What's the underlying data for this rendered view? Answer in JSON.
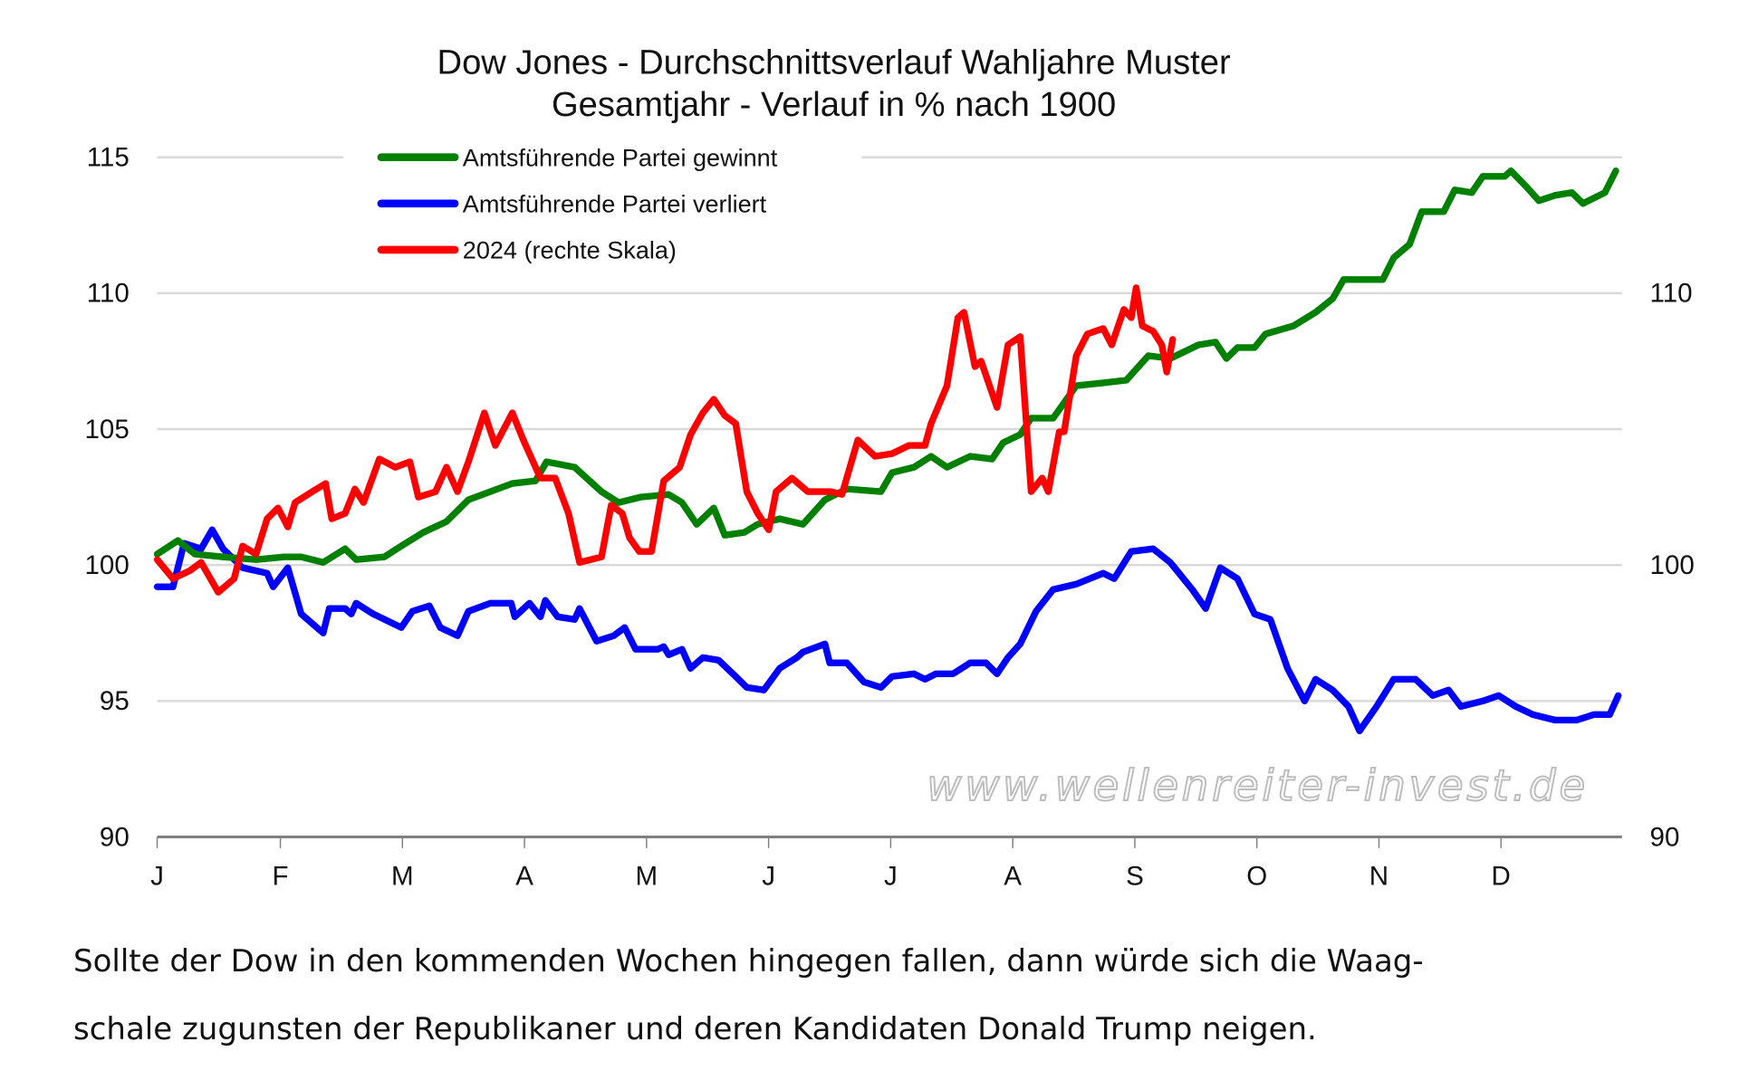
{
  "chart_data": {
    "type": "line",
    "title": "Dow Jones - Durchschnittsverlauf Wahljahre Muster",
    "subtitle": "Gesamtjahr - Verlauf in % nach 1900",
    "xlabel": "",
    "ylabel": "",
    "x_unit": "month position (0 = Jan start, 12 = year end)",
    "x_tick_labels": [
      "J",
      "F",
      "M",
      "A",
      "M",
      "J",
      "J",
      "A",
      "S",
      "O",
      "N",
      "D"
    ],
    "y_left_ticks": [
      90,
      95,
      100,
      105,
      110,
      115
    ],
    "y_right_ticks": [
      90,
      100,
      110
    ],
    "ylim": [
      90,
      115
    ],
    "grid": true,
    "legend_position": "top-left",
    "series": [
      {
        "name": "Amtsführende Partei gewinnt",
        "color": "#008000",
        "axis": "left",
        "points": [
          [
            0.0,
            100.4
          ],
          [
            0.17,
            100.9
          ],
          [
            0.31,
            100.4
          ],
          [
            0.54,
            100.3
          ],
          [
            0.81,
            100.2
          ],
          [
            1.04,
            100.3
          ],
          [
            1.18,
            100.3
          ],
          [
            1.36,
            100.1
          ],
          [
            1.54,
            100.6
          ],
          [
            1.63,
            100.2
          ],
          [
            1.86,
            100.3
          ],
          [
            2.0,
            100.7
          ],
          [
            2.18,
            101.2
          ],
          [
            2.37,
            101.6
          ],
          [
            2.55,
            102.4
          ],
          [
            2.73,
            102.7
          ],
          [
            2.91,
            103.0
          ],
          [
            3.1,
            103.1
          ],
          [
            3.19,
            103.8
          ],
          [
            3.42,
            103.6
          ],
          [
            3.64,
            102.7
          ],
          [
            3.78,
            102.3
          ],
          [
            3.96,
            102.5
          ],
          [
            4.19,
            102.6
          ],
          [
            4.3,
            102.3
          ],
          [
            4.42,
            101.5
          ],
          [
            4.56,
            102.1
          ],
          [
            4.65,
            101.1
          ],
          [
            4.81,
            101.2
          ],
          [
            4.92,
            101.5
          ],
          [
            5.1,
            101.7
          ],
          [
            5.29,
            101.5
          ],
          [
            5.47,
            102.4
          ],
          [
            5.65,
            102.8
          ],
          [
            5.93,
            102.7
          ],
          [
            6.02,
            103.4
          ],
          [
            6.2,
            103.6
          ],
          [
            6.34,
            104.0
          ],
          [
            6.47,
            103.6
          ],
          [
            6.66,
            104.0
          ],
          [
            6.84,
            103.9
          ],
          [
            6.93,
            104.5
          ],
          [
            7.07,
            104.8
          ],
          [
            7.16,
            105.4
          ],
          [
            7.34,
            105.4
          ],
          [
            7.53,
            106.6
          ],
          [
            7.75,
            106.7
          ],
          [
            7.94,
            106.8
          ],
          [
            8.12,
            107.7
          ],
          [
            8.3,
            107.6
          ],
          [
            8.53,
            108.1
          ],
          [
            8.67,
            108.2
          ],
          [
            8.76,
            107.6
          ],
          [
            8.85,
            108.0
          ],
          [
            8.99,
            108.0
          ],
          [
            9.08,
            108.5
          ],
          [
            9.31,
            108.8
          ],
          [
            9.49,
            109.3
          ],
          [
            9.63,
            109.8
          ],
          [
            9.72,
            110.5
          ],
          [
            9.85,
            110.5
          ],
          [
            10.04,
            110.5
          ],
          [
            10.13,
            111.3
          ],
          [
            10.26,
            111.8
          ],
          [
            10.36,
            113.0
          ],
          [
            10.54,
            113.0
          ],
          [
            10.63,
            113.8
          ],
          [
            10.77,
            113.7
          ],
          [
            10.86,
            114.3
          ],
          [
            11.04,
            114.3
          ],
          [
            11.09,
            114.5
          ],
          [
            11.22,
            113.9
          ],
          [
            11.32,
            113.4
          ],
          [
            11.45,
            113.6
          ],
          [
            11.59,
            113.7
          ],
          [
            11.68,
            113.3
          ],
          [
            11.86,
            113.7
          ],
          [
            11.95,
            114.5
          ]
        ]
      },
      {
        "name": "Amtsführende Partei verliert",
        "color": "#0000ff",
        "axis": "left",
        "points": [
          [
            0.0,
            99.2
          ],
          [
            0.13,
            99.2
          ],
          [
            0.22,
            100.8
          ],
          [
            0.36,
            100.6
          ],
          [
            0.45,
            101.3
          ],
          [
            0.54,
            100.6
          ],
          [
            0.7,
            99.9
          ],
          [
            0.9,
            99.7
          ],
          [
            0.95,
            99.2
          ],
          [
            1.07,
            99.9
          ],
          [
            1.18,
            98.2
          ],
          [
            1.36,
            97.5
          ],
          [
            1.41,
            98.4
          ],
          [
            1.54,
            98.4
          ],
          [
            1.59,
            98.2
          ],
          [
            1.63,
            98.6
          ],
          [
            1.77,
            98.2
          ],
          [
            2.0,
            97.7
          ],
          [
            2.09,
            98.3
          ],
          [
            2.23,
            98.5
          ],
          [
            2.32,
            97.7
          ],
          [
            2.46,
            97.4
          ],
          [
            2.55,
            98.3
          ],
          [
            2.73,
            98.6
          ],
          [
            2.9,
            98.6
          ],
          [
            2.93,
            98.1
          ],
          [
            3.05,
            98.6
          ],
          [
            3.14,
            98.1
          ],
          [
            3.18,
            98.7
          ],
          [
            3.28,
            98.1
          ],
          [
            3.42,
            98.0
          ],
          [
            3.46,
            98.4
          ],
          [
            3.6,
            97.2
          ],
          [
            3.74,
            97.4
          ],
          [
            3.83,
            97.7
          ],
          [
            3.92,
            96.9
          ],
          [
            4.1,
            96.9
          ],
          [
            4.15,
            97.0
          ],
          [
            4.19,
            96.7
          ],
          [
            4.3,
            96.9
          ],
          [
            4.37,
            96.2
          ],
          [
            4.47,
            96.6
          ],
          [
            4.6,
            96.5
          ],
          [
            4.74,
            95.9
          ],
          [
            4.83,
            95.5
          ],
          [
            4.97,
            95.4
          ],
          [
            5.1,
            96.2
          ],
          [
            5.24,
            96.6
          ],
          [
            5.29,
            96.8
          ],
          [
            5.47,
            97.1
          ],
          [
            5.51,
            96.4
          ],
          [
            5.65,
            96.4
          ],
          [
            5.79,
            95.7
          ],
          [
            5.93,
            95.5
          ],
          [
            6.02,
            95.9
          ],
          [
            6.2,
            96.0
          ],
          [
            6.29,
            95.8
          ],
          [
            6.38,
            96.0
          ],
          [
            6.52,
            96.0
          ],
          [
            6.66,
            96.4
          ],
          [
            6.79,
            96.4
          ],
          [
            6.88,
            96.0
          ],
          [
            6.97,
            96.6
          ],
          [
            7.07,
            97.1
          ],
          [
            7.2,
            98.3
          ],
          [
            7.34,
            99.1
          ],
          [
            7.53,
            99.3
          ],
          [
            7.75,
            99.7
          ],
          [
            7.84,
            99.5
          ],
          [
            7.98,
            100.5
          ],
          [
            8.16,
            100.6
          ],
          [
            8.3,
            100.1
          ],
          [
            8.48,
            99.1
          ],
          [
            8.59,
            98.4
          ],
          [
            8.71,
            99.9
          ],
          [
            8.85,
            99.5
          ],
          [
            8.99,
            98.2
          ],
          [
            9.12,
            98.0
          ],
          [
            9.26,
            96.2
          ],
          [
            9.4,
            95.0
          ],
          [
            9.49,
            95.8
          ],
          [
            9.63,
            95.4
          ],
          [
            9.76,
            94.8
          ],
          [
            9.85,
            93.9
          ],
          [
            9.99,
            94.8
          ],
          [
            10.13,
            95.8
          ],
          [
            10.31,
            95.8
          ],
          [
            10.45,
            95.2
          ],
          [
            10.58,
            95.4
          ],
          [
            10.68,
            94.8
          ],
          [
            10.86,
            95.0
          ],
          [
            10.99,
            95.2
          ],
          [
            11.13,
            94.8
          ],
          [
            11.27,
            94.5
          ],
          [
            11.45,
            94.3
          ],
          [
            11.63,
            94.3
          ],
          [
            11.77,
            94.5
          ],
          [
            11.9,
            94.5
          ],
          [
            11.97,
            95.2
          ]
        ]
      },
      {
        "name": "2024 (rechte Skala)",
        "color": "#ff0000",
        "axis": "right",
        "points": [
          [
            0.0,
            100.2
          ],
          [
            0.13,
            99.5
          ],
          [
            0.27,
            99.8
          ],
          [
            0.36,
            100.1
          ],
          [
            0.5,
            99.0
          ],
          [
            0.63,
            99.5
          ],
          [
            0.7,
            100.7
          ],
          [
            0.81,
            100.4
          ],
          [
            0.9,
            101.7
          ],
          [
            0.99,
            102.1
          ],
          [
            1.07,
            101.4
          ],
          [
            1.13,
            102.3
          ],
          [
            1.27,
            102.7
          ],
          [
            1.38,
            103.0
          ],
          [
            1.43,
            101.7
          ],
          [
            1.54,
            101.9
          ],
          [
            1.62,
            102.8
          ],
          [
            1.69,
            102.3
          ],
          [
            1.82,
            103.9
          ],
          [
            1.95,
            103.6
          ],
          [
            2.07,
            103.8
          ],
          [
            2.14,
            102.5
          ],
          [
            2.28,
            102.7
          ],
          [
            2.37,
            103.6
          ],
          [
            2.46,
            102.7
          ],
          [
            2.55,
            103.8
          ],
          [
            2.68,
            105.6
          ],
          [
            2.77,
            104.4
          ],
          [
            2.91,
            105.6
          ],
          [
            3.0,
            104.6
          ],
          [
            3.14,
            103.2
          ],
          [
            3.26,
            103.2
          ],
          [
            3.37,
            101.9
          ],
          [
            3.46,
            100.1
          ],
          [
            3.64,
            100.3
          ],
          [
            3.72,
            102.2
          ],
          [
            3.81,
            101.9
          ],
          [
            3.87,
            101.0
          ],
          [
            3.95,
            100.5
          ],
          [
            4.05,
            100.5
          ],
          [
            4.15,
            103.1
          ],
          [
            4.28,
            103.6
          ],
          [
            4.37,
            104.8
          ],
          [
            4.47,
            105.6
          ],
          [
            4.56,
            106.1
          ],
          [
            4.65,
            105.5
          ],
          [
            4.74,
            105.2
          ],
          [
            4.83,
            102.7
          ],
          [
            4.92,
            101.9
          ],
          [
            5.01,
            101.3
          ],
          [
            5.07,
            102.7
          ],
          [
            5.2,
            103.2
          ],
          [
            5.33,
            102.7
          ],
          [
            5.52,
            102.7
          ],
          [
            5.61,
            102.6
          ],
          [
            5.74,
            104.6
          ],
          [
            5.88,
            104.0
          ],
          [
            6.02,
            104.1
          ],
          [
            6.16,
            104.4
          ],
          [
            6.29,
            104.4
          ],
          [
            6.34,
            105.2
          ],
          [
            6.47,
            106.6
          ],
          [
            6.56,
            109.1
          ],
          [
            6.61,
            109.3
          ],
          [
            6.7,
            107.3
          ],
          [
            6.75,
            107.5
          ],
          [
            6.88,
            105.8
          ],
          [
            6.97,
            108.1
          ],
          [
            7.07,
            108.4
          ],
          [
            7.16,
            102.7
          ],
          [
            7.25,
            103.2
          ],
          [
            7.3,
            102.7
          ],
          [
            7.39,
            104.9
          ],
          [
            7.43,
            104.9
          ],
          [
            7.53,
            107.7
          ],
          [
            7.62,
            108.5
          ],
          [
            7.75,
            108.7
          ],
          [
            7.82,
            108.1
          ],
          [
            7.92,
            109.4
          ],
          [
            7.98,
            109.1
          ],
          [
            8.02,
            110.2
          ],
          [
            8.07,
            108.8
          ],
          [
            8.16,
            108.6
          ],
          [
            8.23,
            108.1
          ],
          [
            8.27,
            107.1
          ],
          [
            8.32,
            108.3
          ]
        ]
      }
    ],
    "annotations": [
      "www.wellenreiter-invest.de"
    ]
  },
  "caption": {
    "line1": "Sollte der Dow in den kommenden Wochen hingegen fallen, dann würde sich die Waag-",
    "line2": "schale zugunsten der Republikaner und deren Kandidaten Donald Trump neigen."
  }
}
